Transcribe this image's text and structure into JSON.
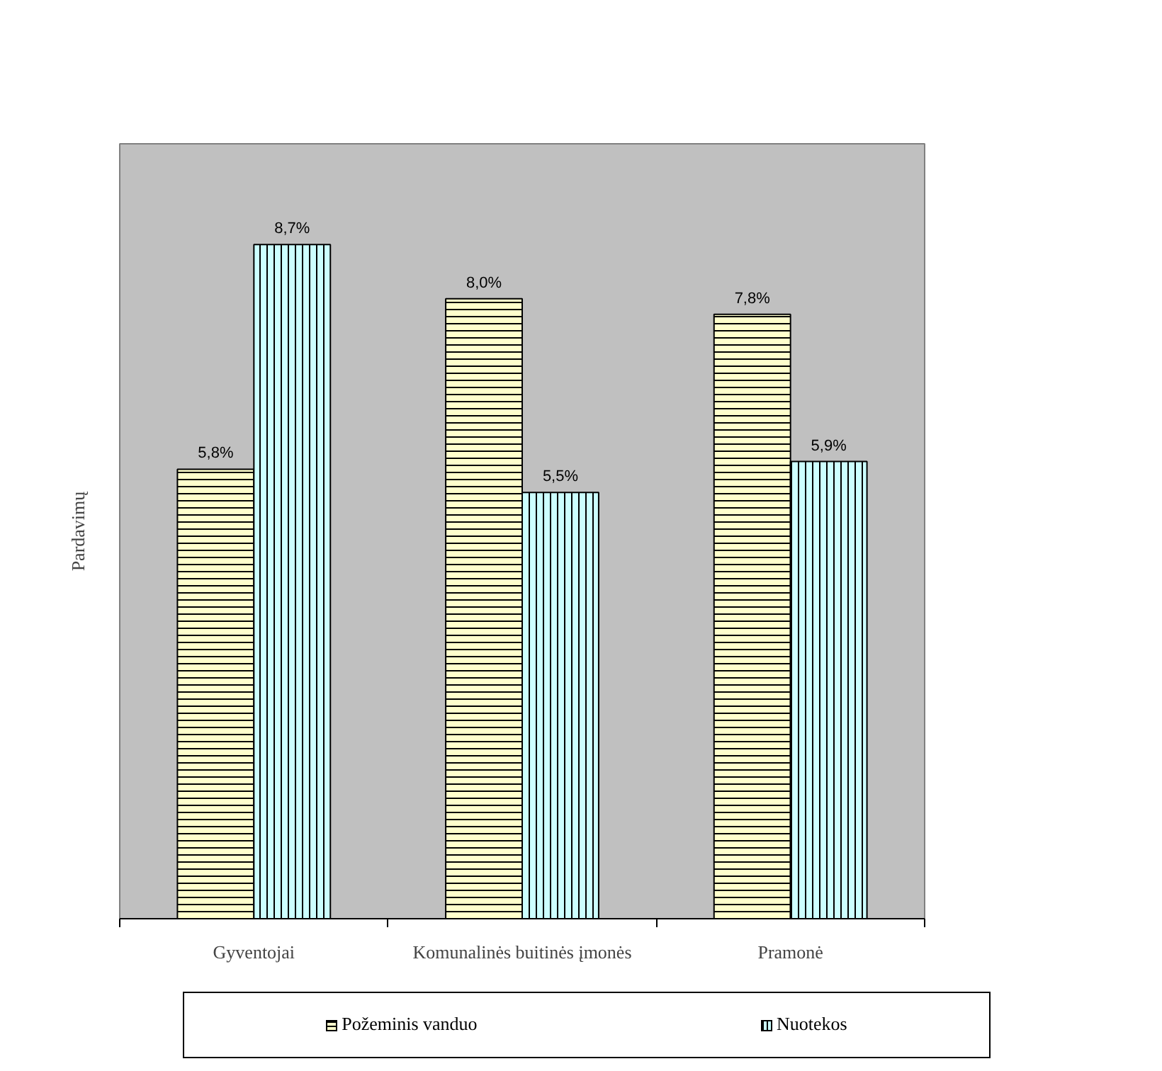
{
  "chart_data": {
    "type": "bar",
    "ylabel": "Pardavimų",
    "categories": [
      "Gyventojai",
      "Komunalinės buitinės įmonės",
      "Pramonė"
    ],
    "series": [
      {
        "name": "Požeminis vanduo",
        "color": "#ffffcc",
        "values": [
          5.8,
          8.0,
          7.8
        ],
        "value_labels": [
          "5,8%",
          "8,0%",
          "7,8%"
        ]
      },
      {
        "name": "Nuotekos",
        "color": "#ccffff",
        "values": [
          8.7,
          5.5,
          5.9
        ],
        "value_labels": [
          "8,7%",
          "5,5%",
          "5,9%"
        ]
      }
    ],
    "ylim": [
      0,
      10
    ],
    "tick_labels": "x",
    "legend": "bottom"
  }
}
